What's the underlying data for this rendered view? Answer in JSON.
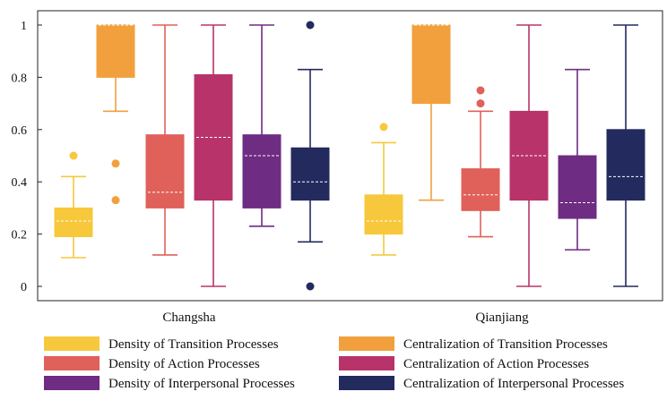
{
  "chart_data": {
    "type": "box",
    "title": "",
    "xlabel": "",
    "ylabel": "",
    "ylim": [
      0,
      1
    ],
    "yticks": [
      0,
      0.2,
      0.4,
      0.6,
      0.8,
      1
    ],
    "ytick_labels": [
      "0",
      "0.2",
      "0.4",
      "0.6",
      "0.8",
      "1"
    ],
    "grid": false,
    "legend_position": "bottom",
    "categories": [
      "Changsha",
      "Qianjiang"
    ],
    "series": [
      {
        "name": "Density of Transition Processes",
        "color": "#f7c83c",
        "boxes": [
          {
            "min": 0.11,
            "q1": 0.19,
            "median": 0.25,
            "q3": 0.3,
            "max": 0.42,
            "outliers": [
              0.5
            ]
          },
          {
            "min": 0.12,
            "q1": 0.2,
            "median": 0.25,
            "q3": 0.35,
            "max": 0.55,
            "outliers": [
              0.61
            ]
          }
        ]
      },
      {
        "name": "Centralization of Transition Processes",
        "color": "#f2a03d",
        "boxes": [
          {
            "min": 0.67,
            "q1": 0.8,
            "median": 1.0,
            "q3": 1.0,
            "max": 1.0,
            "outliers": [
              0.47,
              0.33
            ]
          },
          {
            "min": 0.33,
            "q1": 0.7,
            "median": 1.0,
            "q3": 1.0,
            "max": 1.0,
            "outliers": []
          }
        ]
      },
      {
        "name": "Density of Action Processes",
        "color": "#e0605a",
        "boxes": [
          {
            "min": 0.12,
            "q1": 0.3,
            "median": 0.36,
            "q3": 0.58,
            "max": 1.0,
            "outliers": []
          },
          {
            "min": 0.19,
            "q1": 0.29,
            "median": 0.35,
            "q3": 0.45,
            "max": 0.67,
            "outliers": [
              0.7,
              0.75
            ]
          }
        ]
      },
      {
        "name": "Centralization of Action Processes",
        "color": "#b8336a",
        "boxes": [
          {
            "min": 0.0,
            "q1": 0.33,
            "median": 0.57,
            "q3": 0.81,
            "max": 1.0,
            "outliers": []
          },
          {
            "min": 0.0,
            "q1": 0.33,
            "median": 0.5,
            "q3": 0.67,
            "max": 1.0,
            "outliers": []
          }
        ]
      },
      {
        "name": "Density of Interpersonal Processes",
        "color": "#6e2c82",
        "boxes": [
          {
            "min": 0.23,
            "q1": 0.3,
            "median": 0.5,
            "q3": 0.58,
            "max": 1.0,
            "outliers": []
          },
          {
            "min": 0.14,
            "q1": 0.26,
            "median": 0.32,
            "q3": 0.5,
            "max": 0.83,
            "outliers": []
          }
        ]
      },
      {
        "name": "Centralization of Interpersonal Processes",
        "color": "#232a5e",
        "boxes": [
          {
            "min": 0.17,
            "q1": 0.33,
            "median": 0.4,
            "q3": 0.53,
            "max": 0.83,
            "outliers": [
              1.0,
              0.0
            ]
          },
          {
            "min": 0.0,
            "q1": 0.33,
            "median": 0.42,
            "q3": 0.6,
            "max": 1.0,
            "outliers": []
          }
        ]
      }
    ]
  }
}
